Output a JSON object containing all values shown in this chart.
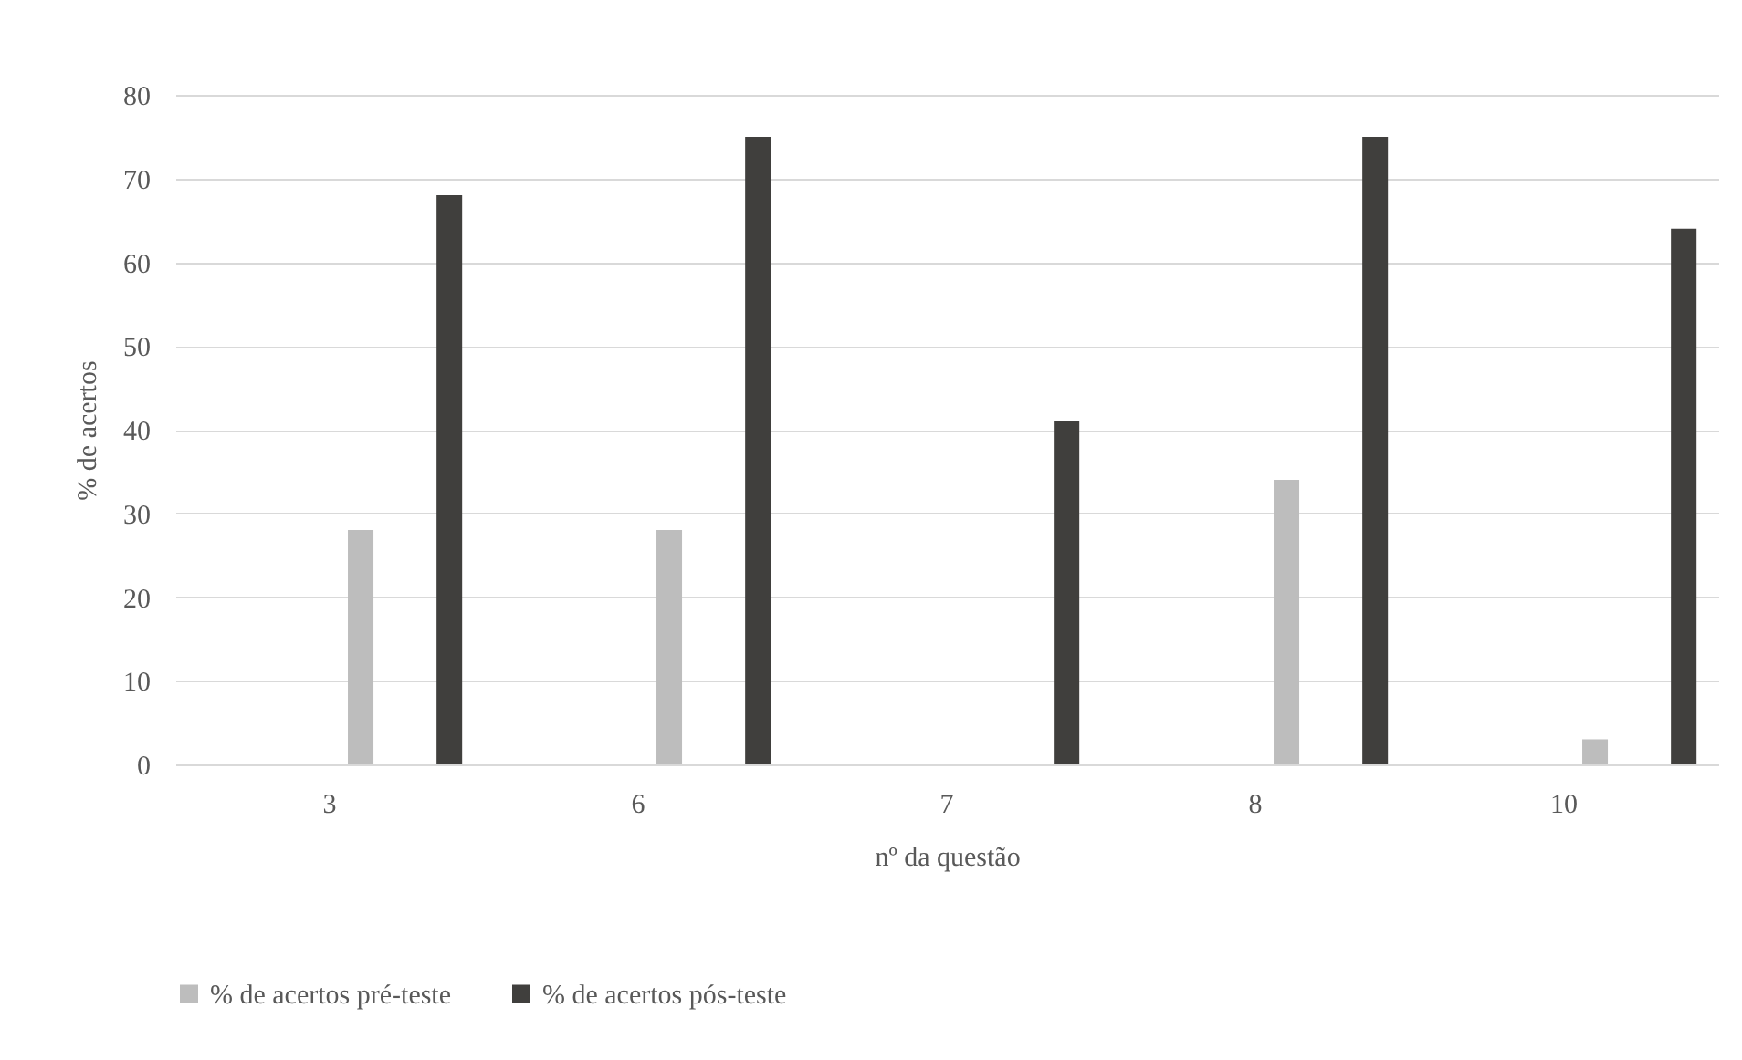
{
  "chart_data": {
    "type": "bar",
    "xlabel": "nº da questão",
    "ylabel": "% de acertos",
    "categories": [
      "3",
      "6",
      "7",
      "8",
      "10"
    ],
    "series": [
      {
        "name": "% de acertos pré-teste",
        "color": "#bdbdbd",
        "values": [
          28,
          28,
          0,
          34,
          3
        ]
      },
      {
        "name": "% de acertos pós-teste",
        "color": "#403f3d",
        "values": [
          68,
          75,
          41,
          75,
          64
        ]
      }
    ],
    "ylim": [
      0,
      80
    ],
    "yticks": [
      0,
      10,
      20,
      30,
      40,
      50,
      60,
      70,
      80
    ],
    "grid": "y",
    "legend": "bottom"
  }
}
